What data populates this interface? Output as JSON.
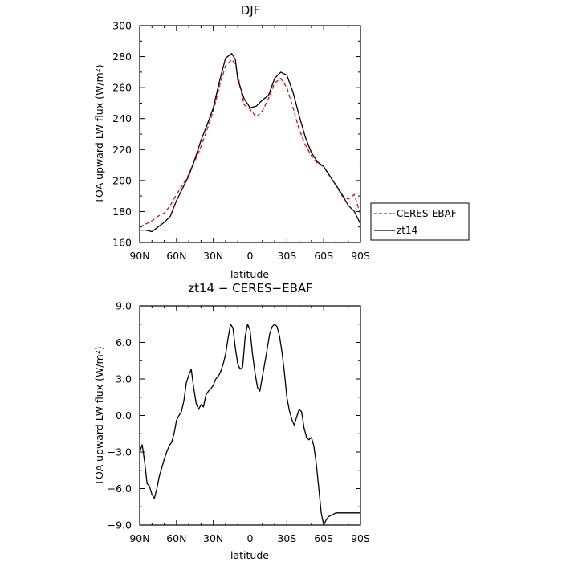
{
  "chart_data": [
    {
      "type": "line",
      "title": "DJF",
      "xlabel": "latitude",
      "ylabel": "TOA upward LW flux (W/m²)",
      "xlim": [
        90,
        -90
      ],
      "ylim": [
        160,
        300
      ],
      "x_ticks": [
        90,
        60,
        30,
        0,
        -30,
        -60,
        -90
      ],
      "x_tick_labels": [
        "90N",
        "60N",
        "30N",
        "0",
        "30S",
        "60S",
        "90S"
      ],
      "y_ticks": [
        160,
        180,
        200,
        220,
        240,
        260,
        280,
        300
      ],
      "y_tick_labels": [
        "160",
        "180",
        "200",
        "220",
        "240",
        "260",
        "280",
        "300"
      ],
      "legend_position": "outside-right",
      "series": [
        {
          "name": "CERES-EBAF",
          "color": "#ff0000",
          "style": "dashed",
          "x": [
            90,
            85,
            80,
            75,
            70,
            65,
            60,
            55,
            50,
            45,
            40,
            35,
            30,
            25,
            20,
            15,
            12,
            10,
            5,
            0,
            -5,
            -10,
            -15,
            -20,
            -25,
            -30,
            -35,
            -40,
            -45,
            -50,
            -55,
            -60,
            -65,
            -70,
            -75,
            -80,
            -85,
            -90
          ],
          "values": [
            170,
            172,
            174,
            177,
            179,
            184,
            191,
            197,
            204,
            213,
            222,
            233,
            245,
            261,
            274,
            278,
            275,
            268,
            249,
            246,
            241,
            245,
            253,
            263,
            266,
            260,
            247,
            233,
            223,
            216,
            211,
            209,
            203,
            197,
            190,
            188,
            191,
            178
          ]
        },
        {
          "name": "zt14",
          "color": "#000000",
          "style": "solid",
          "x": [
            90,
            85,
            80,
            75,
            70,
            65,
            60,
            55,
            50,
            45,
            40,
            35,
            30,
            25,
            20,
            15,
            12,
            10,
            5,
            0,
            -5,
            -10,
            -15,
            -20,
            -25,
            -30,
            -35,
            -40,
            -45,
            -50,
            -55,
            -60,
            -65,
            -70,
            -75,
            -80,
            -85,
            -90
          ],
          "values": [
            168,
            168,
            167,
            170,
            173,
            177,
            187,
            195,
            203,
            214,
            226,
            236,
            247,
            264,
            279,
            282,
            278,
            265,
            253,
            247,
            248,
            252,
            255,
            266,
            270,
            268,
            257,
            242,
            228,
            218,
            212,
            209,
            203,
            197,
            191,
            184,
            180,
            172
          ]
        }
      ]
    },
    {
      "type": "line",
      "title": "zt14 − CERES−EBAF",
      "xlabel": "latitude",
      "ylabel": "TOA upward LW flux (W/m²)",
      "xlim": [
        90,
        -90
      ],
      "ylim": [
        -9,
        9
      ],
      "x_ticks": [
        90,
        60,
        30,
        0,
        -30,
        -60,
        -90
      ],
      "x_tick_labels": [
        "90N",
        "60N",
        "30N",
        "0",
        "30S",
        "60S",
        "90S"
      ],
      "y_ticks": [
        -9,
        -6,
        -3,
        0,
        3,
        6,
        9
      ],
      "y_tick_labels": [
        "−9.0",
        "−6.0",
        "−3.0",
        "0.0",
        "3.0",
        "6.0",
        "9.0"
      ],
      "series": [
        {
          "color": "#000000",
          "style": "solid",
          "x": [
            90,
            88,
            86,
            84,
            82,
            80,
            78,
            76,
            74,
            72,
            70,
            68,
            66,
            64,
            62,
            60,
            58,
            56,
            54,
            52,
            50,
            48,
            46,
            44,
            42,
            40,
            38,
            36,
            34,
            32,
            30,
            28,
            26,
            24,
            22,
            20,
            18,
            16,
            14,
            12,
            10,
            8,
            6,
            4,
            2,
            0,
            -2,
            -4,
            -6,
            -8,
            -10,
            -12,
            -14,
            -16,
            -18,
            -20,
            -22,
            -24,
            -26,
            -28,
            -30,
            -32,
            -34,
            -36,
            -38,
            -40,
            -42,
            -44,
            -46,
            -48,
            -50,
            -52,
            -54,
            -56,
            -58,
            -60,
            -62,
            -64,
            -66,
            -68,
            -70,
            -72,
            -74,
            -76,
            -78,
            -80,
            -82,
            -84,
            -86,
            -88,
            -90
          ],
          "values": [
            -3.0,
            -2.4,
            -3.8,
            -5.6,
            -5.8,
            -6.5,
            -6.8,
            -6.0,
            -5.0,
            -4.3,
            -3.6,
            -3.0,
            -2.5,
            -2.2,
            -1.5,
            -0.4,
            0.0,
            0.3,
            1.2,
            2.7,
            3.3,
            3.8,
            2.3,
            1.0,
            0.5,
            0.9,
            0.7,
            1.7,
            2.0,
            2.2,
            2.5,
            3.0,
            3.2,
            3.6,
            4.2,
            5.0,
            6.3,
            7.5,
            7.2,
            5.5,
            4.2,
            3.8,
            4.0,
            6.5,
            7.5,
            7.0,
            5.0,
            3.5,
            2.3,
            2.0,
            3.2,
            4.3,
            5.5,
            6.7,
            7.3,
            7.5,
            7.3,
            6.5,
            5.2,
            3.5,
            1.5,
            0.4,
            -0.3,
            -0.8,
            -0.1,
            0.5,
            0.3,
            -1.0,
            -1.8,
            -2.0,
            -1.8,
            -2.5,
            -4.0,
            -6.0,
            -8.0,
            -9.0,
            -8.6,
            -8.3,
            -8.2,
            -8.1,
            -8.0,
            -8.0,
            -8.0,
            -8.0,
            -8.0,
            -8.0,
            -8.0,
            -8.0,
            -8.0,
            -8.0,
            -8.0
          ]
        }
      ]
    }
  ]
}
